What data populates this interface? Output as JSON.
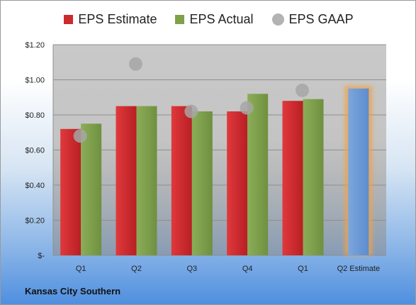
{
  "colors": {
    "estimate": "#cc2a2e",
    "actual": "#7fa14a",
    "gaap": "#a6a6a6",
    "projected": "#6f9bd6",
    "projected_glow": "#f0a24a"
  },
  "company": "Kansas City Southern",
  "chart_data": {
    "type": "bar",
    "categories": [
      "Q1",
      "Q2",
      "Q3",
      "Q4",
      "Q1",
      "Q2 Estimate"
    ],
    "series": [
      {
        "name": "EPS Estimate",
        "values": [
          0.72,
          0.85,
          0.85,
          0.82,
          0.88,
          0.95
        ]
      },
      {
        "name": "EPS Actual",
        "values": [
          0.75,
          0.85,
          0.82,
          0.92,
          0.89,
          null
        ]
      },
      {
        "name": "EPS GAAP",
        "values": [
          0.68,
          1.09,
          0.82,
          0.84,
          0.94,
          null
        ]
      }
    ],
    "ylim": [
      0,
      1.2
    ],
    "yticks": [
      0,
      0.2,
      0.4,
      0.6,
      0.8,
      1.0,
      1.2
    ],
    "ytick_labels": [
      "$-",
      "$0.20",
      "$0.40",
      "$0.60",
      "$0.80",
      "$1.00",
      "$1.20"
    ],
    "grid": true,
    "legend_position": "top"
  }
}
